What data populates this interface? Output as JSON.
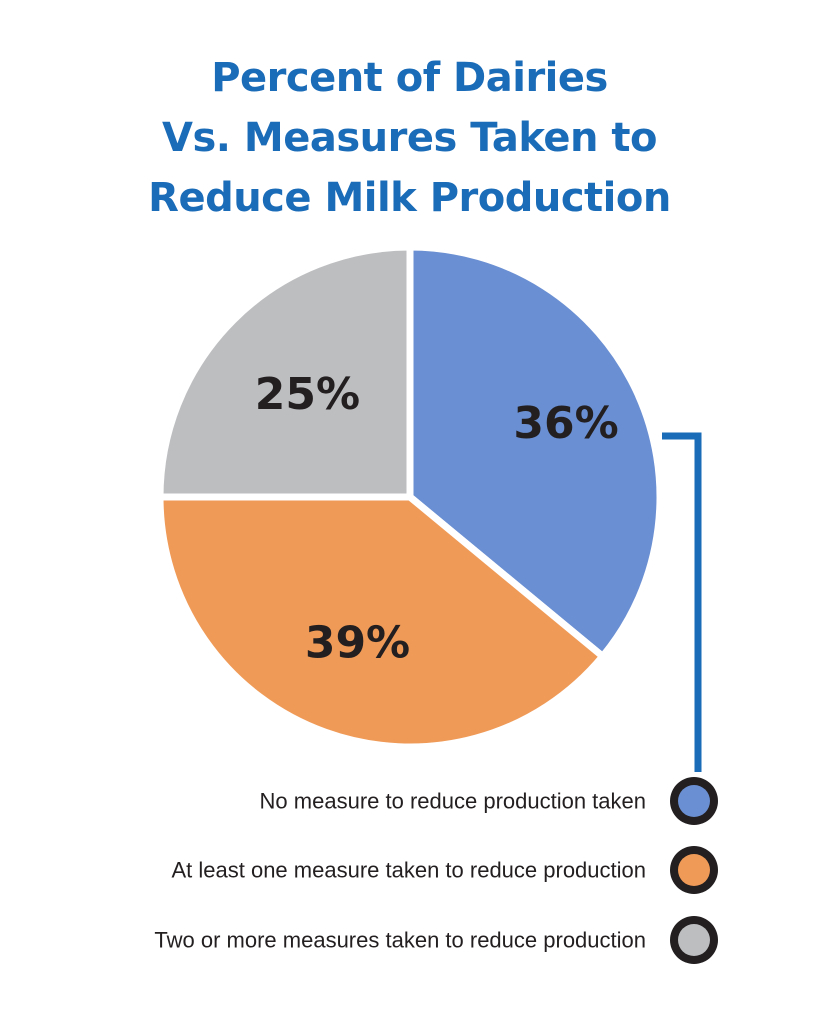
{
  "chart_data": {
    "type": "pie",
    "title": [
      "Percent of Dairies",
      "Vs. Measures Taken to",
      "Reduce Milk Production"
    ],
    "slices": [
      {
        "label": "No measure to reduce production taken",
        "value": 36,
        "display": "36%",
        "color": "#6a8fd2"
      },
      {
        "label": "At least one measure taken to reduce production",
        "value": 39,
        "display": "39%",
        "color": "#f09a57"
      },
      {
        "label": "Two or more measures taken to reduce production",
        "value": 25,
        "display": "25%",
        "color": "#bdbec0"
      }
    ],
    "legend_position": "bottom-right",
    "legend_marker_ring_color": "#231f20",
    "connector_color": "#1a6bb8"
  }
}
